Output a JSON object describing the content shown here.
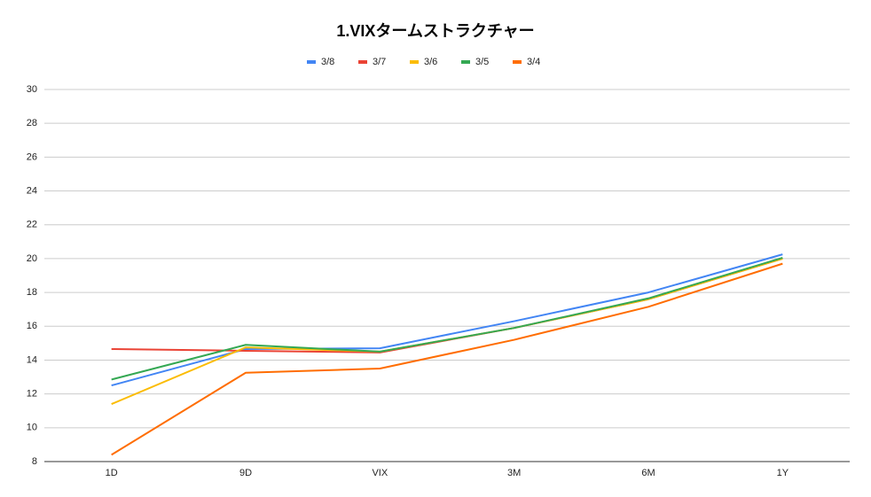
{
  "chart_data": {
    "type": "line",
    "title": "1.VIXタームストラクチャー",
    "categories": [
      "1D",
      "9D",
      "VIX",
      "3M",
      "6M",
      "1Y"
    ],
    "series": [
      {
        "name": "3/8",
        "color": "#4285f4",
        "values": [
          12.5,
          14.65,
          14.7,
          16.3,
          18.0,
          20.25
        ]
      },
      {
        "name": "3/7",
        "color": "#ea4335",
        "values": [
          14.65,
          14.55,
          14.45,
          15.9,
          17.6,
          20.0
        ]
      },
      {
        "name": "3/6",
        "color": "#fbbc04",
        "values": [
          11.4,
          14.75,
          14.5,
          15.9,
          17.6,
          20.0
        ]
      },
      {
        "name": "3/5",
        "color": "#34a853",
        "values": [
          12.85,
          14.9,
          14.5,
          15.9,
          17.65,
          20.05
        ]
      },
      {
        "name": "3/4",
        "color": "#ff6d01",
        "values": [
          8.4,
          13.25,
          13.5,
          15.2,
          17.15,
          19.7
        ]
      }
    ],
    "ylim": [
      8,
      30
    ],
    "yticks": [
      8,
      10,
      12,
      14,
      16,
      18,
      20,
      22,
      24,
      26,
      28,
      30
    ],
    "grid": true,
    "legend": "top"
  }
}
